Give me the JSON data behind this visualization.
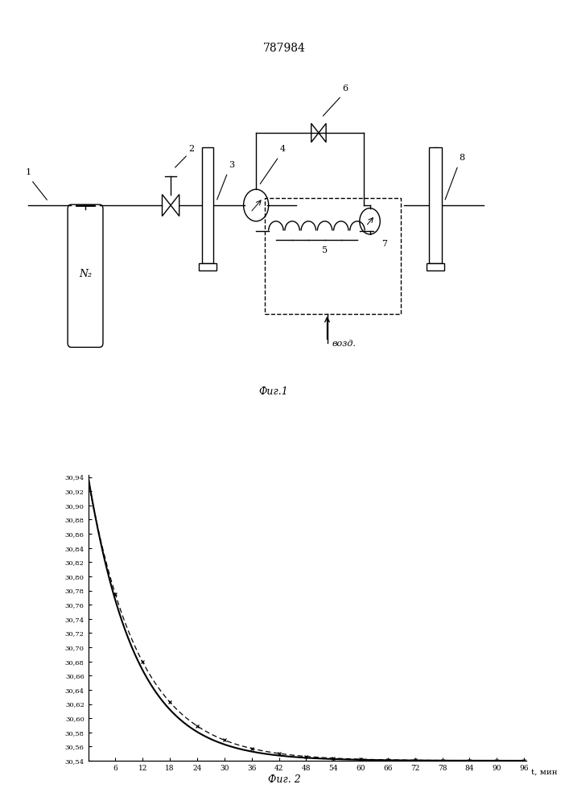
{
  "patent_number": "787984",
  "fig1_caption": "Фиг.1",
  "fig2_caption": "Фиг. 2",
  "n2_label": "N₂",
  "air_label": "возд.",
  "y_tick_labels": [
    "30,54",
    "30,56",
    "30,58",
    "30,60",
    "30,62",
    "30,64",
    "30,66",
    "30,68",
    "30,70",
    "30,72",
    "30,74",
    "30,76",
    "30,78",
    "30,80",
    "30,82",
    "30,84",
    "30,86",
    "30,88",
    "30,90",
    "30,92",
    "30,94"
  ],
  "y_ticks": [
    30.54,
    30.56,
    30.58,
    30.6,
    30.62,
    30.64,
    30.66,
    30.68,
    30.7,
    30.72,
    30.74,
    30.76,
    30.78,
    30.8,
    30.82,
    30.84,
    30.86,
    30.88,
    30.9,
    30.92,
    30.94
  ],
  "x_ticks": [
    6,
    12,
    18,
    24,
    30,
    36,
    42,
    48,
    54,
    60,
    66,
    72,
    78,
    84,
    90,
    96
  ],
  "x_label": "t, мин",
  "y_min": 30.54,
  "y_max": 30.94,
  "x_min": 0,
  "x_max": 96,
  "bg_color": "#ffffff"
}
